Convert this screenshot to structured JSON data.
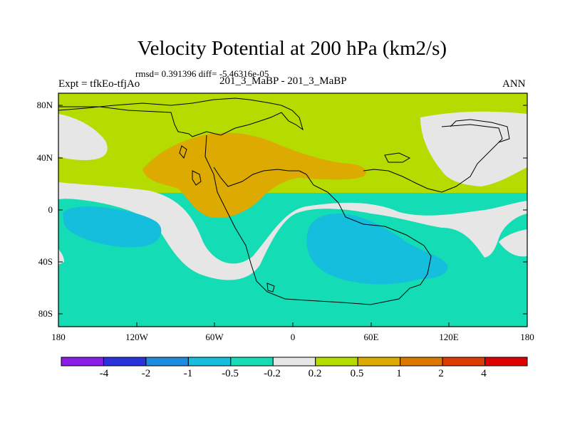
{
  "title": "Velocity Potential at 200 hPa (km2/s)",
  "stats": "rmsd= 0.391396 diff= -5.46316e-05",
  "expt": "Expt = tfkEo-tfjAo",
  "cases": "201_3_MaBP - 201_3_MaBP",
  "season": "ANN",
  "chart_data": {
    "type": "heatmap",
    "xlabel": "",
    "ylabel": "",
    "xlim": [
      -180,
      180
    ],
    "ylim": [
      -90,
      90
    ],
    "xticks": [
      "180",
      "120W",
      "60W",
      "0",
      "60E",
      "120E",
      "180"
    ],
    "yticks": [
      "80N",
      "40N",
      "0",
      "40S",
      "80S"
    ],
    "colorbar": {
      "levels": [
        "-4",
        "-2",
        "-1",
        "-0.5",
        "-0.2",
        "0.2",
        "0.5",
        "1",
        "2",
        "4"
      ],
      "colors": [
        "#8a1ee6",
        "#2a32dc",
        "#1e8cdc",
        "#14bedc",
        "#14dcb4",
        "#e6e6e6",
        "#b4dc00",
        "#dcaa00",
        "#dc7800",
        "#dc3c00",
        "#dc0000"
      ]
    },
    "regions": [
      {
        "level_band": "0.2 to 0.5",
        "color": "#b4dc00",
        "description_area": "northern hemisphere 20N-90N"
      },
      {
        "level_band": "0.5 to 1",
        "color": "#dcaa00",
        "center_lon": -40,
        "center_lat": 35
      },
      {
        "level_band": "-0.2 to 0.2",
        "color": "#e6e6e6",
        "center_lon": -80,
        "center_lat": -20
      },
      {
        "level_band": "-0.5 to -0.2",
        "color": "#14dcb4",
        "description_area": "southern hemisphere 20S-90S"
      },
      {
        "level_band": "-1 to -0.5",
        "color": "#14bedc",
        "center_lon": -140,
        "center_lat": -15
      },
      {
        "level_band": "-1 to -0.5",
        "color": "#14bedc",
        "center_lon": 50,
        "center_lat": -30
      }
    ]
  }
}
